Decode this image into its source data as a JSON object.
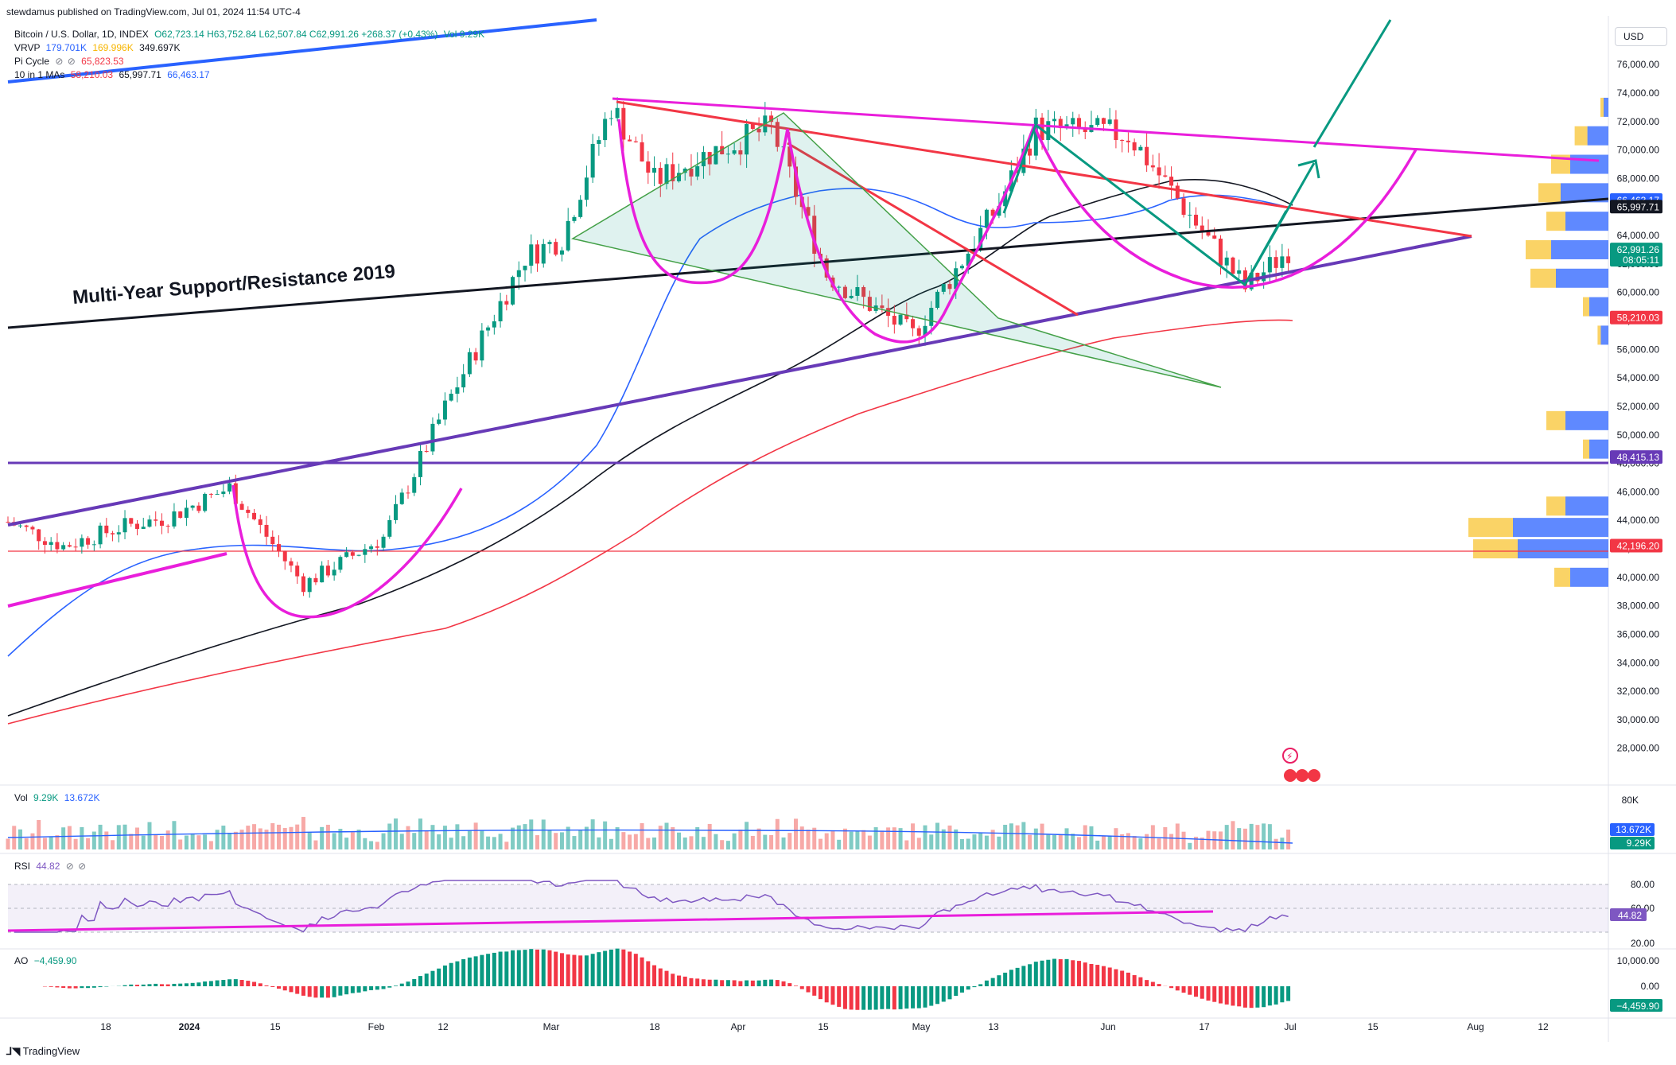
{
  "header": {
    "published": "stewdamus published on TradingView.com, Jul 01, 2024 11:54 UTC-4",
    "symbol": "Bitcoin / U.S. Dollar, 1D, INDEX",
    "ohlc": "O62,723.14 H63,752.84 L62,507.84 C62,991.26 +268.37 (+0.43%)",
    "vol_inline": "Vol 9.29K",
    "indicators": [
      {
        "name": "VRVP",
        "values": [
          "179.701K",
          "169.996K",
          "349.697K"
        ],
        "colors": [
          "#2962ff",
          "#f7b500",
          "#131722"
        ]
      },
      {
        "name": "Pi Cycle",
        "values": [
          "65,823.53"
        ],
        "colors": [
          "#f23645"
        ]
      },
      {
        "name": "10 in 1 MAs",
        "values": [
          "58,210.03",
          "65,997.71",
          "66,463.17"
        ],
        "colors": [
          "#f23645",
          "#131722",
          "#2962ff"
        ]
      }
    ]
  },
  "currency": "USD",
  "annotation": "Multi-Year Support/Resistance 2019",
  "footer_brand": "TradingView",
  "price_axis": {
    "ticks": [
      "76,000.00",
      "74,000.00",
      "72,000.00",
      "70,000.00",
      "68,000.00",
      "66,000.00",
      "64,000.00",
      "62,000.00",
      "60,000.00",
      "58,000.00",
      "56,000.00",
      "54,000.00",
      "52,000.00",
      "50,000.00",
      "48,000.00",
      "46,000.00",
      "44,000.00",
      "42,000.00",
      "40,000.00",
      "38,000.00",
      "36,000.00",
      "34,000.00",
      "32,000.00",
      "30,000.00",
      "28,000.00"
    ],
    "badges": [
      {
        "value": "66,463.17",
        "color": "#2962ff"
      },
      {
        "value": "65,997.71",
        "color": "#131722"
      },
      {
        "value": "62,991.26",
        "sub": "08:05:11",
        "color": "#089981"
      },
      {
        "value": "58,210.03",
        "color": "#f23645"
      },
      {
        "value": "48,415.13",
        "color": "#673ab7"
      },
      {
        "value": "42,196.20",
        "color": "#f23645"
      }
    ]
  },
  "time_axis": {
    "labels": [
      "18",
      "2024",
      "15",
      "Feb",
      "12",
      "Mar",
      "18",
      "Apr",
      "15",
      "May",
      "13",
      "Jun",
      "17",
      "Jul",
      "15",
      "Aug",
      "12"
    ]
  },
  "volume_pane": {
    "title": "Vol",
    "v1": "9.29K",
    "v2": "13.672K",
    "axis_label": "80K",
    "badges": [
      {
        "value": "13.672K",
        "color": "#2962ff"
      },
      {
        "value": "9.29K",
        "color": "#089981"
      }
    ]
  },
  "rsi_pane": {
    "title": "RSI",
    "value": "44.82",
    "ticks": [
      "80.00",
      "60.00",
      "20.00"
    ],
    "badge": {
      "value": "44.82",
      "color": "#7e57c2"
    }
  },
  "ao_pane": {
    "title": "AO",
    "value": "−4,459.90",
    "ticks": [
      "10,000.00",
      "0.00"
    ],
    "badge": {
      "value": "−4,459.90",
      "color": "#089981"
    }
  },
  "chart_data": {
    "type": "candlestick",
    "symbol": "Bitcoin / U.S. Dollar, 1D, INDEX",
    "x_range": [
      "2023-12-06",
      "2024-08-22"
    ],
    "ylim": [
      26000,
      77500
    ],
    "close_series_approx": [
      {
        "date": "2023-12-06",
        "close": 43900
      },
      {
        "date": "2023-12-15",
        "close": 42200
      },
      {
        "date": "2023-12-25",
        "close": 43600
      },
      {
        "date": "2024-01-01",
        "close": 44200
      },
      {
        "date": "2024-01-11",
        "close": 46300
      },
      {
        "date": "2024-01-23",
        "close": 39500
      },
      {
        "date": "2024-02-05",
        "close": 42800
      },
      {
        "date": "2024-02-15",
        "close": 51900
      },
      {
        "date": "2024-02-28",
        "close": 62500
      },
      {
        "date": "2024-03-05",
        "close": 63800
      },
      {
        "date": "2024-03-13",
        "close": 73100
      },
      {
        "date": "2024-03-20",
        "close": 67800
      },
      {
        "date": "2024-03-27",
        "close": 69400
      },
      {
        "date": "2024-04-08",
        "close": 71600
      },
      {
        "date": "2024-04-17",
        "close": 61300
      },
      {
        "date": "2024-05-01",
        "close": 57000
      },
      {
        "date": "2024-05-15",
        "close": 66200
      },
      {
        "date": "2024-05-21",
        "close": 71500
      },
      {
        "date": "2024-06-05",
        "close": 71100
      },
      {
        "date": "2024-06-14",
        "close": 66000
      },
      {
        "date": "2024-06-24",
        "close": 60300
      },
      {
        "date": "2024-07-01",
        "close": 62991.26
      }
    ],
    "last": {
      "open": 62723.14,
      "high": 63752.84,
      "low": 62507.84,
      "close": 62991.26,
      "change": 268.37,
      "change_pct": 0.43
    },
    "moving_averages": [
      {
        "name": "MA red",
        "value": 58210.03,
        "color": "#f23645"
      },
      {
        "name": "MA black",
        "value": 65997.71,
        "color": "#131722"
      },
      {
        "name": "MA blue",
        "value": 66463.17,
        "color": "#2962ff"
      }
    ],
    "horizontal_levels": [
      {
        "value": 48415.13,
        "color": "#673ab7"
      },
      {
        "value": 42196.2,
        "color": "#f23645"
      }
    ],
    "volume_profile_approx": [
      {
        "price": 73000,
        "up": 0.05,
        "down": 0.05
      },
      {
        "price": 71000,
        "up": 0.22,
        "down": 0.2
      },
      {
        "price": 69000,
        "up": 0.4,
        "down": 0.3
      },
      {
        "price": 67000,
        "up": 0.5,
        "down": 0.35
      },
      {
        "price": 65000,
        "up": 0.45,
        "down": 0.3
      },
      {
        "price": 63000,
        "up": 0.6,
        "down": 0.4
      },
      {
        "price": 61000,
        "up": 0.55,
        "down": 0.4
      },
      {
        "price": 59000,
        "up": 0.2,
        "down": 0.1
      },
      {
        "price": 57000,
        "up": 0.08,
        "down": 0.05
      },
      {
        "price": 51000,
        "up": 0.45,
        "down": 0.3
      },
      {
        "price": 49000,
        "up": 0.2,
        "down": 0.1
      },
      {
        "price": 45000,
        "up": 0.45,
        "down": 0.3
      },
      {
        "price": 43500,
        "up": 1.0,
        "down": 0.7
      },
      {
        "price": 42000,
        "up": 0.95,
        "down": 0.7
      },
      {
        "price": 40000,
        "up": 0.4,
        "down": 0.25
      }
    ],
    "rsi_last": 44.82,
    "ao_last": -4459.9
  }
}
